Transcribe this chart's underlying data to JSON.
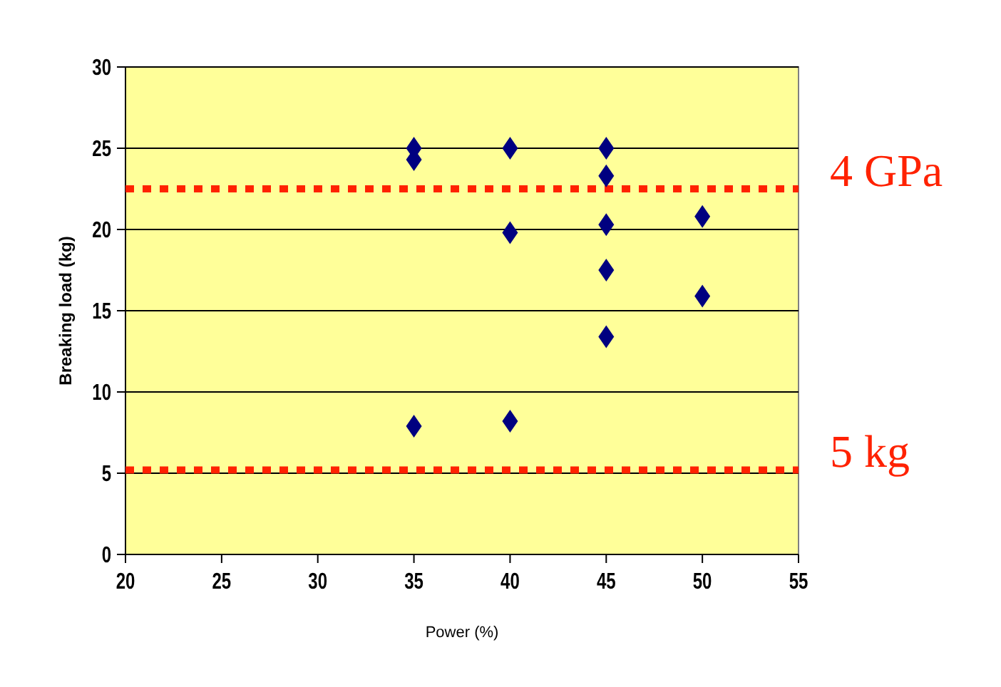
{
  "chart_data": {
    "type": "scatter",
    "xlabel": "Power (%)",
    "ylabel": "Breaking load (kg)",
    "x": [
      35,
      35,
      35,
      40,
      40,
      40,
      45,
      45,
      45,
      45,
      45,
      50,
      50
    ],
    "series": [
      {
        "color": "#000080",
        "values": [
          25,
          24.3,
          7.9,
          25,
          19.8,
          8.2,
          25,
          23.3,
          20.3,
          17.5,
          13.4,
          20.8,
          15.9
        ]
      }
    ],
    "xlim": [
      20,
      55
    ],
    "xticks": [
      20,
      25,
      30,
      35,
      40,
      45,
      50,
      55
    ],
    "ylim": [
      0,
      30
    ],
    "yticks": [
      0,
      5,
      10,
      15,
      20,
      25,
      30
    ],
    "grid": "y",
    "marker": "diamond",
    "ref_lines": [
      {
        "axis": "y",
        "value": 22.5,
        "label": "4 GPa",
        "color": "#ff2200",
        "line_style": "dotted"
      },
      {
        "axis": "y",
        "value": 5.2,
        "label": "5 kg",
        "color": "#ff2200",
        "line_style": "dotted"
      }
    ]
  }
}
